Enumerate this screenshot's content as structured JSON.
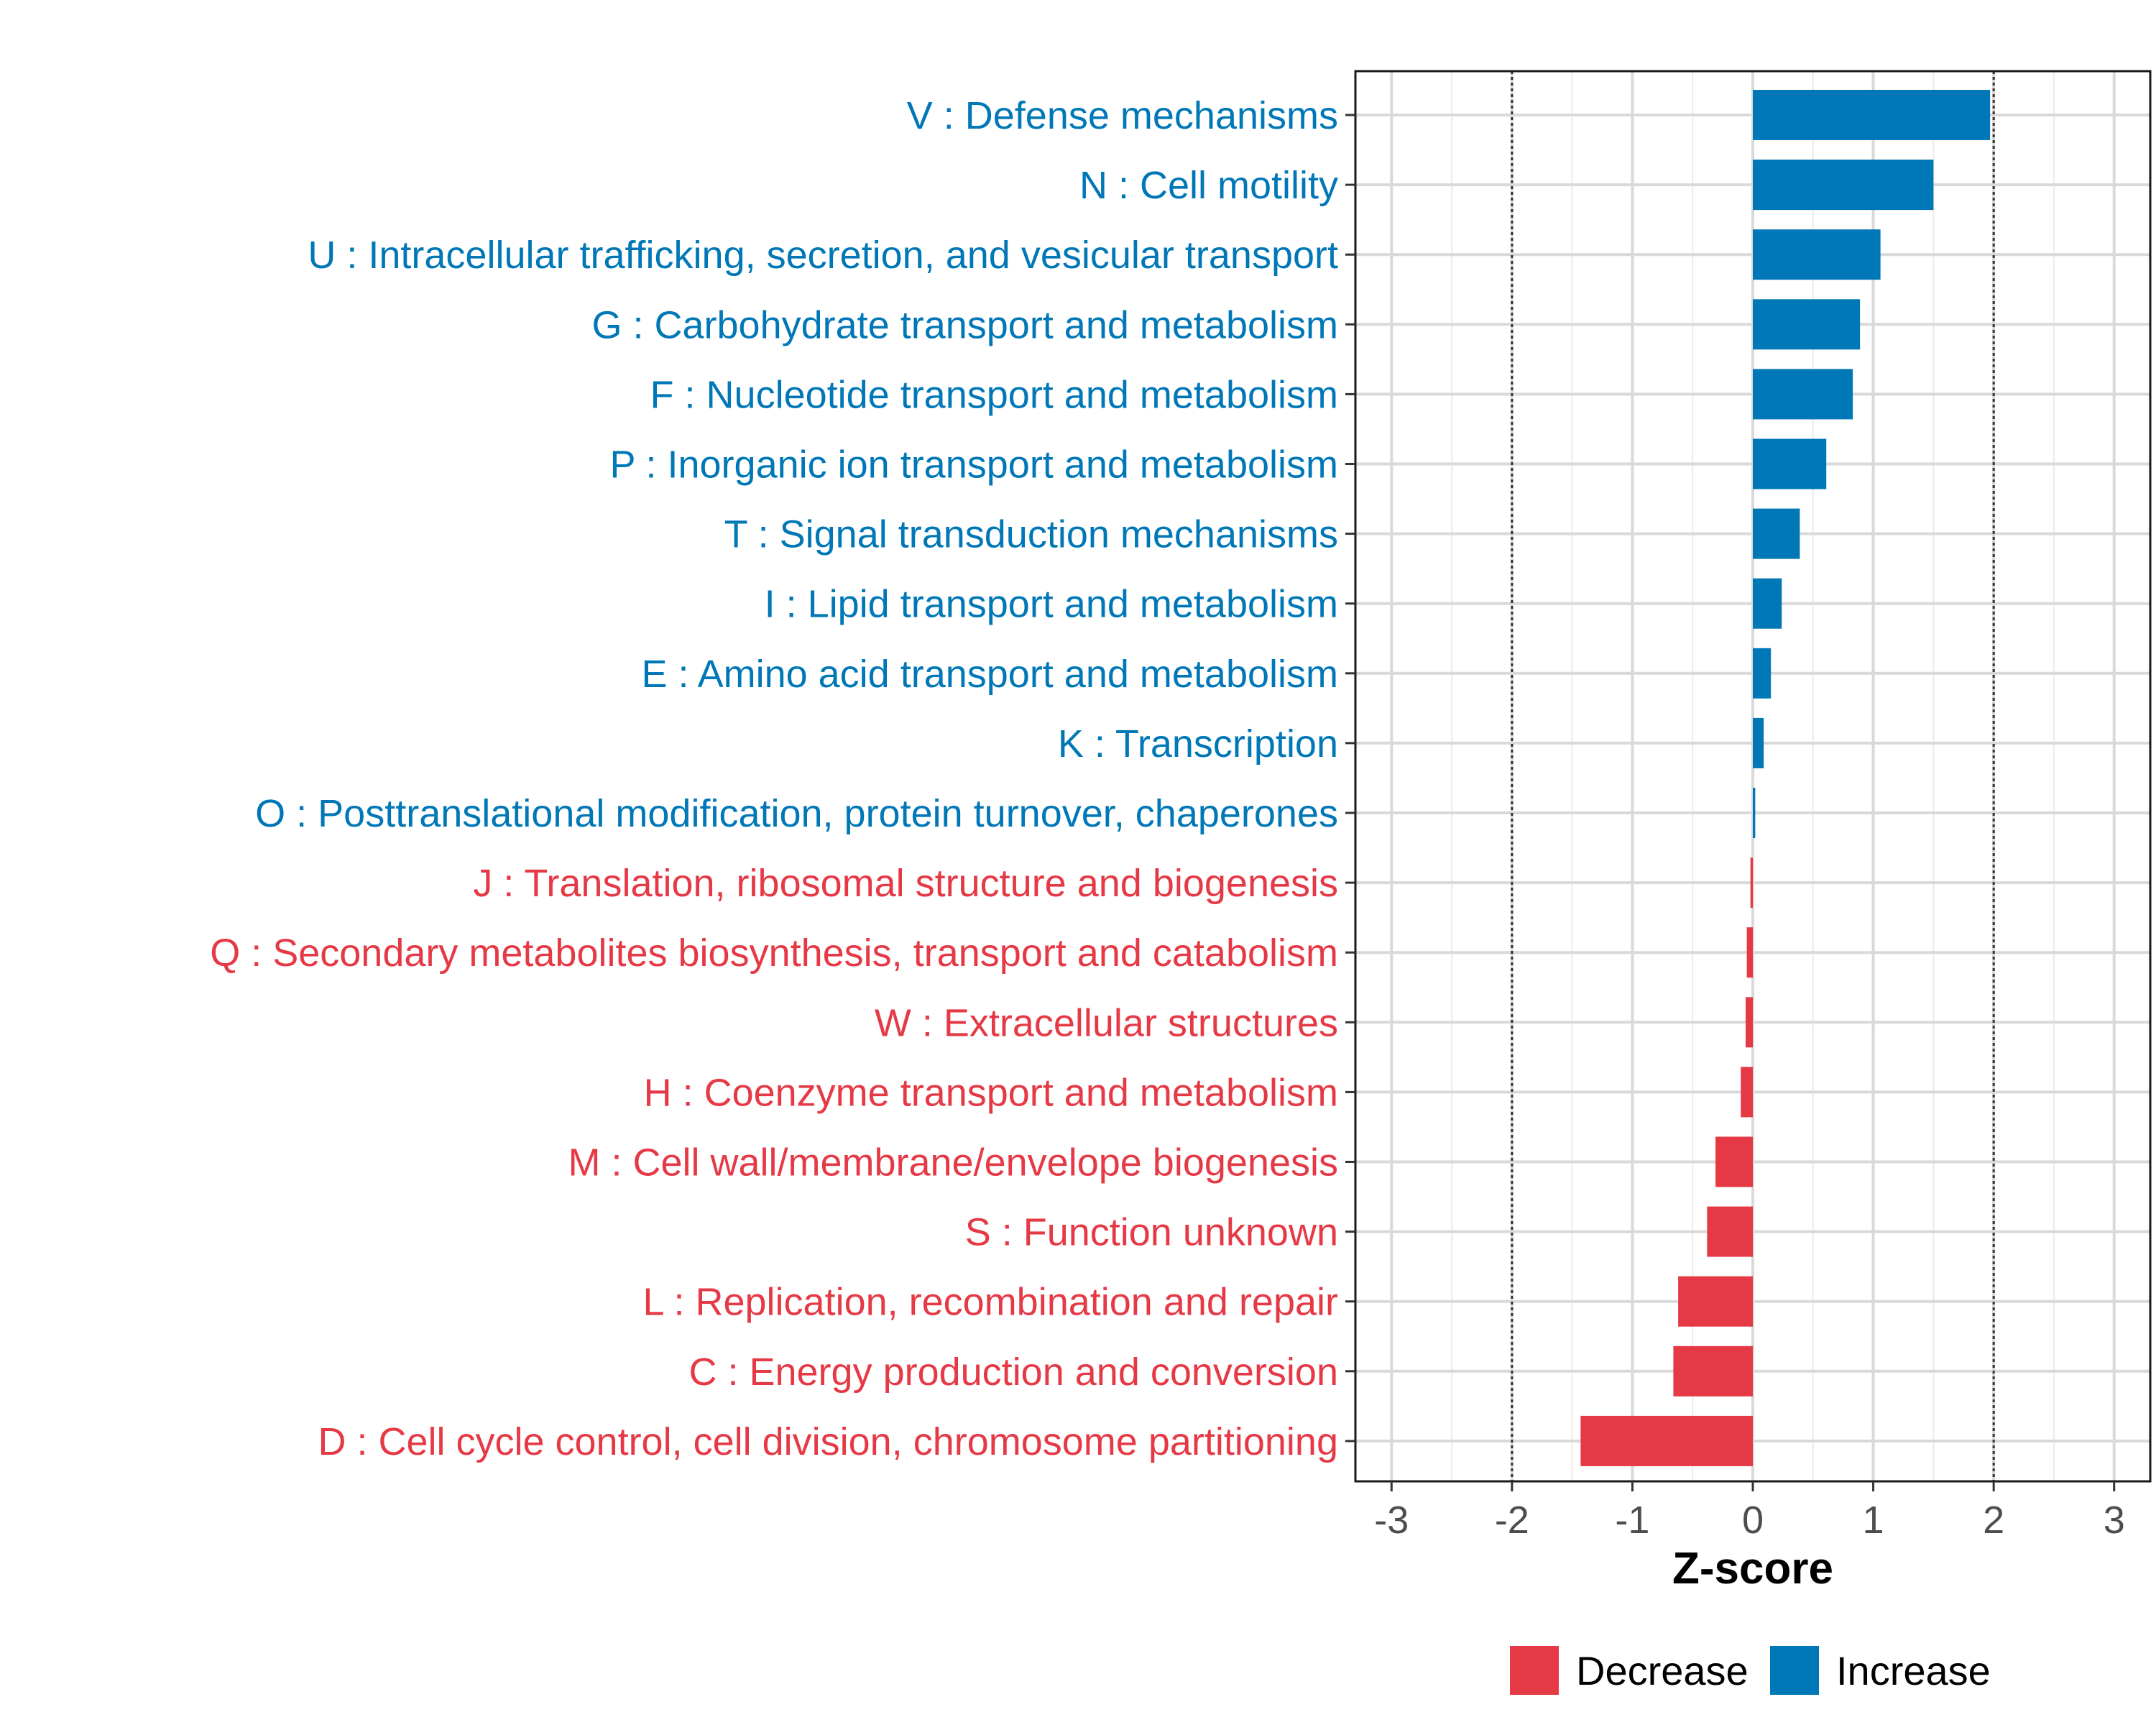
{
  "chart_data": {
    "type": "bar",
    "orientation": "horizontal",
    "xlabel": "Z-score",
    "ylabel": "",
    "xlim": [
      -3.3,
      3.3
    ],
    "xticks": [
      -3,
      -2,
      -1,
      0,
      1,
      2,
      3
    ],
    "threshold_lines": [
      -2,
      2
    ],
    "grid": true,
    "legend_position": "bottom",
    "colors": {
      "Decrease": "#E63946",
      "Increase": "#0077B6"
    },
    "legend": [
      {
        "label": "Decrease",
        "color": "#E63946"
      },
      {
        "label": "Increase",
        "color": "#0077B6"
      }
    ],
    "bars": [
      {
        "label": "V : Defense mechanisms",
        "value": 1.97,
        "group": "Increase"
      },
      {
        "label": "N : Cell motility",
        "value": 1.5,
        "group": "Increase"
      },
      {
        "label": "U : Intracellular trafficking, secretion, and vesicular transport",
        "value": 1.06,
        "group": "Increase"
      },
      {
        "label": "G : Carbohydrate transport and metabolism",
        "value": 0.89,
        "group": "Increase"
      },
      {
        "label": "F : Nucleotide transport and metabolism",
        "value": 0.83,
        "group": "Increase"
      },
      {
        "label": "P : Inorganic ion transport and metabolism",
        "value": 0.61,
        "group": "Increase"
      },
      {
        "label": "T : Signal transduction mechanisms",
        "value": 0.39,
        "group": "Increase"
      },
      {
        "label": "I : Lipid transport and metabolism",
        "value": 0.24,
        "group": "Increase"
      },
      {
        "label": "E : Amino acid transport and metabolism",
        "value": 0.15,
        "group": "Increase"
      },
      {
        "label": "K : Transcription",
        "value": 0.09,
        "group": "Increase"
      },
      {
        "label": "O : Posttranslational modification, protein turnover, chaperones",
        "value": 0.02,
        "group": "Increase"
      },
      {
        "label": "J : Translation, ribosomal structure and biogenesis",
        "value": -0.02,
        "group": "Decrease"
      },
      {
        "label": "Q : Secondary metabolites biosynthesis, transport and catabolism",
        "value": -0.05,
        "group": "Decrease"
      },
      {
        "label": "W : Extracellular structures",
        "value": -0.06,
        "group": "Decrease"
      },
      {
        "label": "H : Coenzyme transport and metabolism",
        "value": -0.1,
        "group": "Decrease"
      },
      {
        "label": "M : Cell wall/membrane/envelope biogenesis",
        "value": -0.31,
        "group": "Decrease"
      },
      {
        "label": "S : Function unknown",
        "value": -0.38,
        "group": "Decrease"
      },
      {
        "label": "L : Replication, recombination and repair",
        "value": -0.62,
        "group": "Decrease"
      },
      {
        "label": "C : Energy production and conversion",
        "value": -0.66,
        "group": "Decrease"
      },
      {
        "label": "D : Cell cycle control, cell division, chromosome partitioning",
        "value": -1.43,
        "group": "Decrease"
      }
    ]
  }
}
